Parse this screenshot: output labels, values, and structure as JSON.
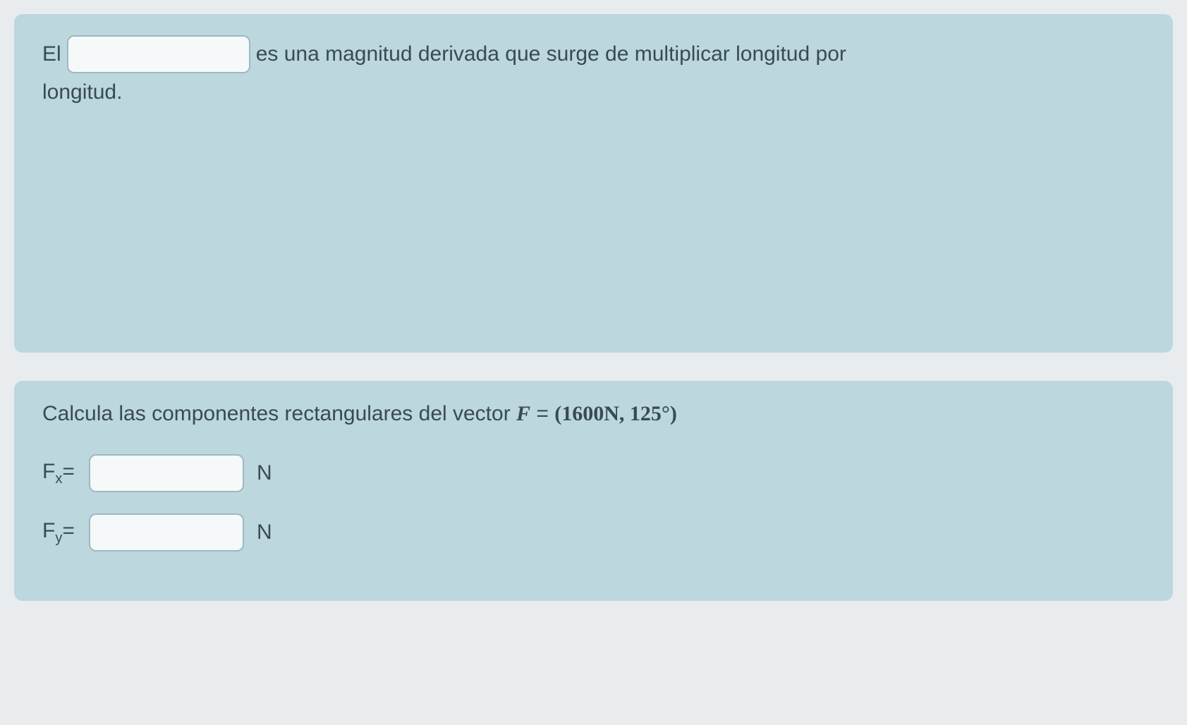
{
  "colors": {
    "card_background": "#bcd7de",
    "page_background": "#e8ecef",
    "text_color": "#3a4a52",
    "input_background": "#f5f9fa",
    "input_border": "#9eb8bf"
  },
  "question1": {
    "prefix": "El",
    "blank_value": "",
    "middle": "es una magnitud derivada que surge de multiplicar longitud por",
    "suffix": "longitud."
  },
  "question2": {
    "prompt_prefix": "Calcula las componentes rectangulares del vector ",
    "vector_symbol": "F",
    "equals": " = ",
    "vector_value": "(1600N, 125°)",
    "fx": {
      "label_base": "F",
      "label_sub": "x",
      "equals": "=",
      "value": "",
      "unit": "N"
    },
    "fy": {
      "label_base": "F",
      "label_sub": "y",
      "equals": "=",
      "value": "",
      "unit": "N"
    }
  }
}
